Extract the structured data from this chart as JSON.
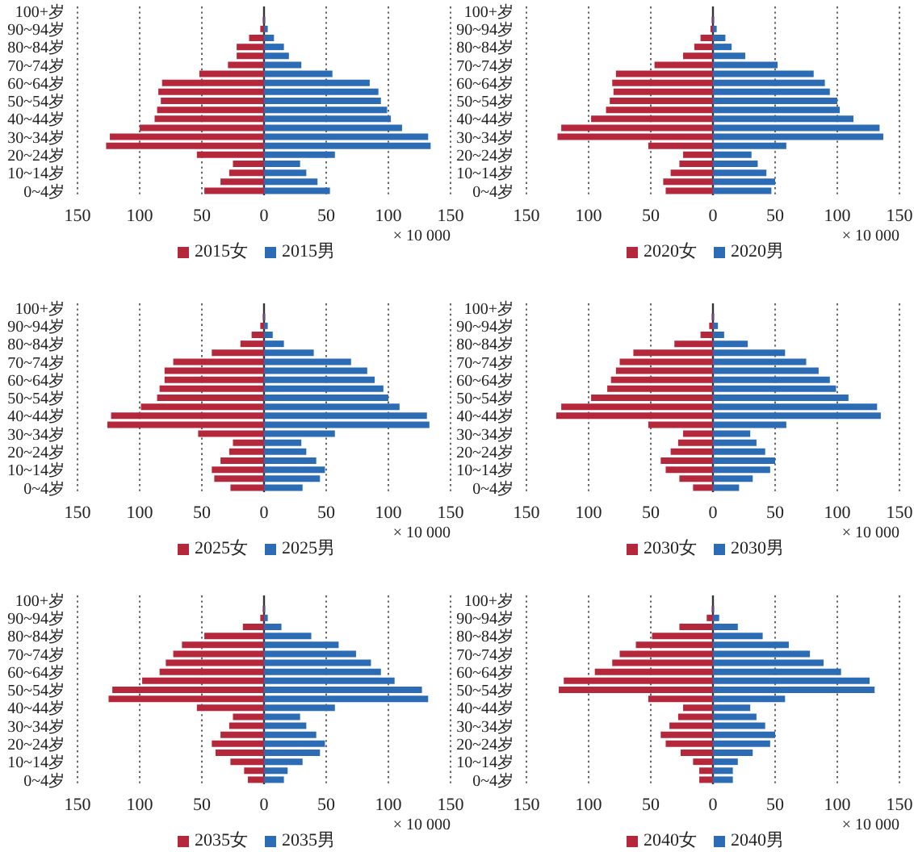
{
  "chart_data": [
    {
      "type": "bar",
      "orientation": "horizontal",
      "stacked": true,
      "categories": [
        "100+岁",
        null,
        "90~94岁",
        null,
        "80~84岁",
        null,
        "70~74岁",
        null,
        "60~64岁",
        null,
        "50~54岁",
        null,
        "40~44岁",
        null,
        "30~34岁",
        null,
        "20~24岁",
        null,
        "10~14岁",
        null,
        "0~4岁"
      ],
      "series": [
        {
          "name": "2015女",
          "color": "#b5283c",
          "values": [
            0,
            -1,
            -3,
            -12,
            -22,
            -22,
            -29,
            -52,
            -82,
            -85,
            -83,
            -86,
            -88,
            -100,
            -124,
            -127,
            -54,
            -25,
            -28,
            -35,
            -48
          ]
        },
        {
          "name": "2015男",
          "color": "#2b6cb4",
          "values": [
            0,
            1,
            3,
            8,
            16,
            20,
            30,
            55,
            85,
            92,
            94,
            99,
            102,
            111,
            132,
            134,
            57,
            29,
            34,
            43,
            53
          ]
        }
      ],
      "xlim": [
        -150,
        150
      ],
      "xticks": [
        {
          "value": -150,
          "label": "150"
        },
        {
          "value": -100,
          "label": "100"
        },
        {
          "value": -50,
          "label": "50"
        },
        0,
        50,
        100,
        150
      ],
      "xlabel": "× 10 000",
      "grid": "x",
      "legend": "bottom"
    },
    {
      "type": "bar",
      "orientation": "horizontal",
      "stacked": true,
      "categories": [
        "100+岁",
        null,
        "90~94岁",
        null,
        "80~84岁",
        null,
        "70~74岁",
        null,
        "60~64岁",
        null,
        "50~54岁",
        null,
        "40~44岁",
        null,
        "30~34岁",
        null,
        "20~24岁",
        null,
        "10~14岁",
        null,
        "0~4岁"
      ],
      "series": [
        {
          "name": "2020女",
          "color": "#b5283c",
          "values": [
            0,
            -1,
            -2,
            -10,
            -15,
            -24,
            -47,
            -78,
            -81,
            -80,
            -83,
            -86,
            -98,
            -122,
            -125,
            -52,
            -24,
            -27,
            -34,
            -40,
            -38
          ]
        },
        {
          "name": "2020男",
          "color": "#2b6cb4",
          "values": [
            0,
            1,
            3,
            10,
            15,
            26,
            52,
            81,
            90,
            94,
            100,
            102,
            113,
            134,
            137,
            59,
            31,
            36,
            43,
            50,
            47
          ]
        }
      ],
      "xlim": [
        -150,
        150
      ],
      "xticks": [
        {
          "value": -150,
          "label": "150"
        },
        {
          "value": -100,
          "label": "100"
        },
        {
          "value": -50,
          "label": "50"
        },
        0,
        50,
        100,
        150
      ],
      "xlabel": "× 10 000",
      "grid": "x",
      "legend": "bottom"
    },
    {
      "type": "bar",
      "orientation": "horizontal",
      "stacked": true,
      "categories": [
        "100+岁",
        null,
        "90~94岁",
        null,
        "80~84岁",
        null,
        "70~74岁",
        null,
        "60~64岁",
        null,
        "50~54岁",
        null,
        "40~44岁",
        null,
        "30~34岁",
        null,
        "20~24岁",
        null,
        "10~14岁",
        null,
        "0~4岁"
      ],
      "series": [
        {
          "name": "2025女",
          "color": "#b5283c",
          "values": [
            0,
            -1,
            -3,
            -10,
            -19,
            -42,
            -73,
            -80,
            -80,
            -84,
            -86,
            -99,
            -123,
            -126,
            -53,
            -25,
            -28,
            -35,
            -42,
            -40,
            -27
          ]
        },
        {
          "name": "2025男",
          "color": "#2b6cb4",
          "values": [
            0,
            1,
            3,
            7,
            16,
            40,
            70,
            83,
            89,
            96,
            100,
            109,
            131,
            133,
            57,
            30,
            34,
            42,
            49,
            45,
            31
          ]
        }
      ],
      "xlim": [
        -150,
        150
      ],
      "xticks": [
        {
          "value": -150,
          "label": "150"
        },
        {
          "value": -100,
          "label": "100"
        },
        {
          "value": -50,
          "label": "50"
        },
        0,
        50,
        100,
        150
      ],
      "xlabel": "× 10 000",
      "grid": "x",
      "legend": "bottom"
    },
    {
      "type": "bar",
      "orientation": "horizontal",
      "stacked": true,
      "categories": [
        "100+岁",
        null,
        "90~94岁",
        null,
        "80~84岁",
        null,
        "70~74岁",
        null,
        "60~64岁",
        null,
        "50~54岁",
        null,
        "40~44岁",
        null,
        "30~34岁",
        null,
        "20~24岁",
        null,
        "10~14岁",
        null,
        "0~4岁"
      ],
      "series": [
        {
          "name": "2030女",
          "color": "#b5283c",
          "values": [
            0,
            -1,
            -3,
            -10,
            -31,
            -64,
            -75,
            -78,
            -82,
            -85,
            -98,
            -122,
            -126,
            -52,
            -24,
            -28,
            -34,
            -42,
            -38,
            -27,
            -16
          ]
        },
        {
          "name": "2030男",
          "color": "#2b6cb4",
          "values": [
            0,
            1,
            4,
            9,
            28,
            58,
            75,
            85,
            94,
            99,
            109,
            132,
            135,
            59,
            30,
            35,
            42,
            50,
            46,
            32,
            21
          ]
        }
      ],
      "xlim": [
        -150,
        150
      ],
      "xticks": [
        {
          "value": -150,
          "label": "150"
        },
        {
          "value": -100,
          "label": "100"
        },
        {
          "value": -50,
          "label": "50"
        },
        0,
        50,
        100,
        150
      ],
      "xlabel": "× 10 000",
      "grid": "x",
      "legend": "bottom"
    },
    {
      "type": "bar",
      "orientation": "horizontal",
      "stacked": true,
      "categories": [
        "100+岁",
        null,
        "90~94岁",
        null,
        "80~84岁",
        null,
        "70~74岁",
        null,
        "60~64岁",
        null,
        "50~54岁",
        null,
        "40~44岁",
        null,
        "30~34岁",
        null,
        "20~24岁",
        null,
        "10~14岁",
        null,
        "0~4岁"
      ],
      "series": [
        {
          "name": "2035女",
          "color": "#b5283c",
          "values": [
            0,
            -1,
            -3,
            -17,
            -48,
            -66,
            -73,
            -79,
            -84,
            -98,
            -122,
            -125,
            -54,
            -25,
            -28,
            -35,
            -42,
            -39,
            -27,
            -16,
            -13
          ]
        },
        {
          "name": "2035男",
          "color": "#2b6cb4",
          "values": [
            0,
            1,
            3,
            14,
            38,
            60,
            74,
            86,
            94,
            105,
            127,
            132,
            57,
            29,
            34,
            42,
            49,
            45,
            31,
            19,
            16
          ]
        }
      ],
      "xlim": [
        -150,
        150
      ],
      "xticks": [
        {
          "value": -150,
          "label": "150"
        },
        {
          "value": -100,
          "label": "100"
        },
        {
          "value": -50,
          "label": "50"
        },
        0,
        50,
        100,
        150
      ],
      "xlabel": "× 10 000",
      "grid": "x",
      "legend": "bottom"
    },
    {
      "type": "bar",
      "orientation": "horizontal",
      "stacked": true,
      "categories": [
        "100+岁",
        null,
        "90~94岁",
        null,
        "80~84岁",
        null,
        "70~74岁",
        null,
        "60~64岁",
        null,
        "50~54岁",
        null,
        "40~44岁",
        null,
        "30~34岁",
        null,
        "20~24岁",
        null,
        "10~14岁",
        null,
        "0~4岁"
      ],
      "series": [
        {
          "name": "2040女",
          "color": "#b5283c",
          "values": [
            0,
            -1,
            -5,
            -27,
            -49,
            -62,
            -75,
            -81,
            -95,
            -120,
            -124,
            -52,
            -24,
            -28,
            -35,
            -42,
            -38,
            -26,
            -16,
            -11,
            -11
          ]
        },
        {
          "name": "2040男",
          "color": "#2b6cb4",
          "values": [
            0,
            1,
            5,
            20,
            40,
            61,
            78,
            89,
            103,
            126,
            130,
            58,
            30,
            35,
            42,
            50,
            46,
            32,
            20,
            16,
            16
          ]
        }
      ],
      "xlim": [
        -150,
        150
      ],
      "xticks": [
        {
          "value": -150,
          "label": "150"
        },
        {
          "value": -100,
          "label": "100"
        },
        {
          "value": -50,
          "label": "50"
        },
        0,
        50,
        100,
        150
      ],
      "xlabel": "× 10 000",
      "grid": "x",
      "legend": "bottom"
    }
  ]
}
